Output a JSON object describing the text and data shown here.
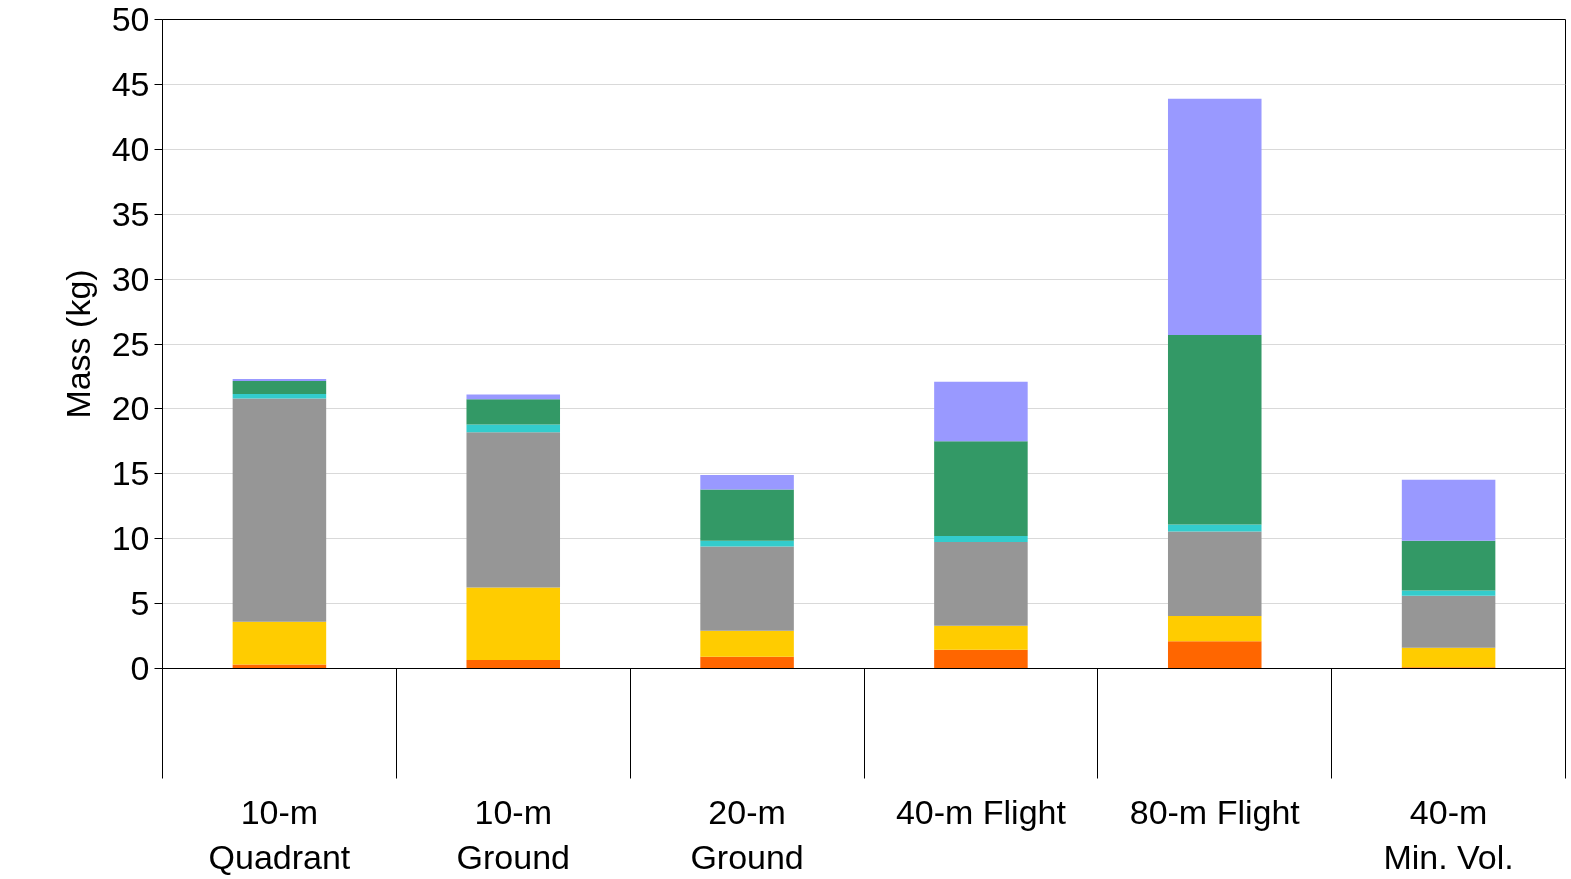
{
  "chart_data": {
    "type": "bar",
    "stacked": true,
    "ylabel": "Mass (kg)",
    "categories": [
      "10-m\nQuadrant",
      "10-m\nGround",
      "20-m\nGround",
      "40-m Flight",
      "80-m Flight",
      "40-m\nMin. Vol."
    ],
    "series": [
      {
        "color": "#ff6600",
        "values": [
          0.3,
          0.65,
          0.9,
          1.45,
          2.1,
          0.1
        ]
      },
      {
        "color": "#ffcc00",
        "values": [
          3.3,
          5.6,
          2.0,
          1.85,
          1.95,
          1.5
        ]
      },
      {
        "color": "#969696",
        "values": [
          17.2,
          11.95,
          6.5,
          6.45,
          6.5,
          4.0
        ]
      },
      {
        "color": "#33cccc",
        "values": [
          0.35,
          0.6,
          0.45,
          0.45,
          0.55,
          0.4
        ]
      },
      {
        "color": "#339966",
        "values": [
          1.0,
          1.95,
          3.95,
          7.3,
          14.6,
          3.85
        ]
      },
      {
        "color": "#9999ff",
        "values": [
          0.15,
          0.35,
          1.1,
          4.6,
          18.2,
          4.7
        ]
      }
    ],
    "ylim": [
      0,
      50
    ],
    "yticks": [
      0,
      5,
      10,
      15,
      20,
      25,
      30,
      35,
      40,
      45,
      50
    ],
    "grid": "y"
  }
}
